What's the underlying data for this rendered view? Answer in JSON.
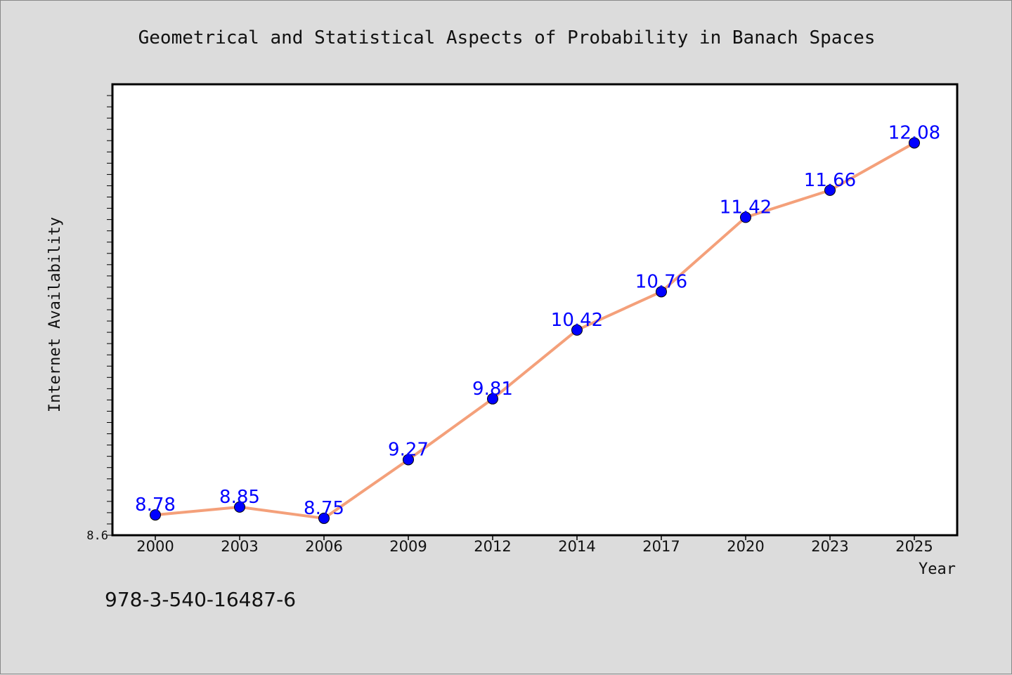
{
  "chart_data": {
    "type": "line",
    "title": "Geometrical and Statistical Aspects of Probability in Banach Spaces",
    "xlabel": "Year",
    "ylabel": "Internet Availability",
    "categories": [
      "2000",
      "2003",
      "2006",
      "2009",
      "2012",
      "2014",
      "2017",
      "2020",
      "2023",
      "2025"
    ],
    "series": [
      {
        "values": [
          8.78,
          8.85,
          8.75,
          9.27,
          9.81,
          10.42,
          10.76,
          11.42,
          11.66,
          12.08
        ]
      }
    ],
    "ylim": [
      8.6,
      12.6
    ],
    "y_tick_labels": [
      "8.6"
    ],
    "grid": false,
    "colors": {
      "line": "#f4a07a",
      "marker": "#0000ff",
      "label": "#0000ff",
      "background": "#dcdcdc",
      "plot_background": "#ffffff"
    }
  },
  "footer": {
    "isbn": "978-3-540-16487-6"
  }
}
